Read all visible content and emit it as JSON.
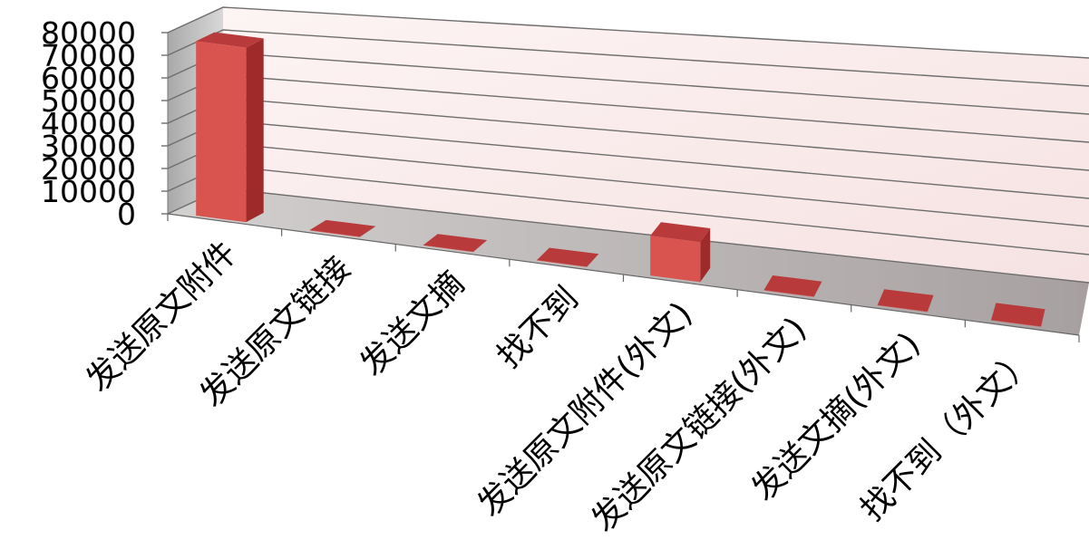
{
  "chart_data": {
    "type": "bar",
    "style": "3d-column",
    "categories": [
      "发送原文附件",
      "发送原文链接",
      "发送文摘",
      "找不到",
      "发送原文附件(外文)",
      "发送原文链接(外文)",
      "发送文摘(外文)",
      "找不到（外文）"
    ],
    "series": [
      {
        "values": [
          76000,
          200,
          150,
          150,
          15500,
          150,
          150,
          150
        ]
      }
    ],
    "y_ticks": [
      "0",
      "10000",
      "20000",
      "30000",
      "40000",
      "50000",
      "60000",
      "70000",
      "80000"
    ],
    "ylim": [
      0,
      80000
    ],
    "title": "",
    "xlabel": "",
    "ylabel": "",
    "grid": true,
    "legend": "none",
    "colors": {
      "bar_front": "#d9534f",
      "bar_side": "#9e2a2a",
      "bar_top": "#b83a3a",
      "back_wall": "#fbecec",
      "side_wall": "#c8c8c8",
      "floor": "#b5acac",
      "gridline": "#6e6e6e"
    }
  }
}
